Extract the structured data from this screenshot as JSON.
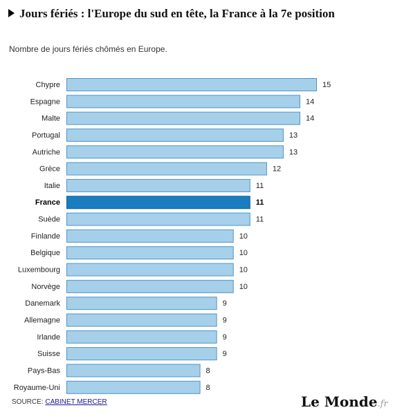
{
  "header": {
    "title": "Jours fériés : l'Europe du sud en tête, la France à la 7e position",
    "subtitle": "Nombre de jours fériés chômés en Europe."
  },
  "footer": {
    "source_label": "SOURCE:",
    "source_link": "CABINET MERCER",
    "logo_name": "Le Monde",
    "logo_suffix": ".fr"
  },
  "colors": {
    "bar": "#a6d0ea",
    "bar_stroke": "#4f93c6",
    "highlight": "#1a7dc0",
    "highlight_stroke": "#0e5f97"
  },
  "chart_data": {
    "type": "bar",
    "orientation": "horizontal",
    "title": "Jours fériés : l'Europe du sud en tête, la France à la 7e position",
    "subtitle": "Nombre de jours fériés chômés en Europe.",
    "categories": [
      "Chypre",
      "Espagne",
      "Malte",
      "Portugal",
      "Autriche",
      "Grèce",
      "Italie",
      "France",
      "Suède",
      "Finlande",
      "Belgique",
      "Luxembourg",
      "Norvège",
      "Danemark",
      "Allemagne",
      "Irlande",
      "Suisse",
      "Pays-Bas",
      "Royaume-Uni"
    ],
    "values": [
      15,
      14,
      14,
      13,
      13,
      12,
      11,
      11,
      11,
      10,
      10,
      10,
      10,
      9,
      9,
      9,
      9,
      8,
      8
    ],
    "highlight": "France",
    "xlim": [
      0,
      15
    ],
    "grid": false,
    "legend": "none"
  }
}
